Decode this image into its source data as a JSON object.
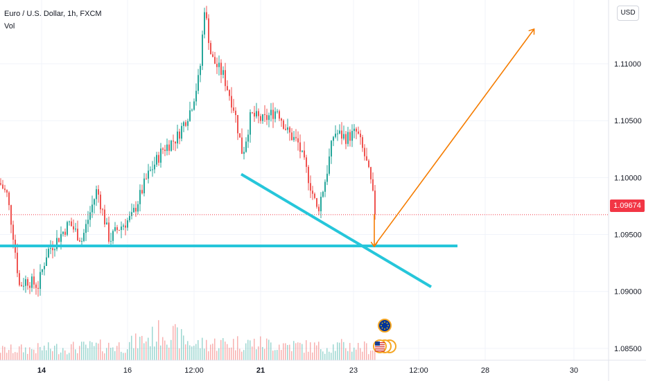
{
  "legend": {
    "symbol": "Euro / U.S. Dollar, 1h, FXCM",
    "volume_label": "Vol"
  },
  "currency_button": "USD",
  "last_price_label": "1.09674",
  "chart_data": {
    "type": "candlestick",
    "title": "Euro / U.S. Dollar, 1h, FXCM",
    "y_ticks": [
      "1.11000",
      "1.10500",
      "1.10000",
      "1.09500",
      "1.09000",
      "1.08500"
    ],
    "y_tick_values": [
      1.11,
      1.105,
      1.1,
      1.095,
      1.09,
      1.085
    ],
    "x_ticks": [
      "14",
      "16",
      "12:00",
      "21",
      "23",
      "12:00",
      "28",
      "30"
    ],
    "ylim": [
      1.0842,
      1.1156
    ],
    "last_price": 1.09674,
    "approx_path": [
      {
        "t": 0,
        "price": 1.0995
      },
      {
        "t": 10,
        "price": 1.0985
      },
      {
        "t": 18,
        "price": 1.0955
      },
      {
        "t": 28,
        "price": 1.0905
      },
      {
        "t": 38,
        "price": 1.091
      },
      {
        "t": 55,
        "price": 1.0905
      },
      {
        "t": 68,
        "price": 1.0935
      },
      {
        "t": 82,
        "price": 1.0945
      },
      {
        "t": 100,
        "price": 1.096
      },
      {
        "t": 118,
        "price": 1.0945
      },
      {
        "t": 140,
        "price": 1.099
      },
      {
        "t": 158,
        "price": 1.0945
      },
      {
        "t": 170,
        "price": 1.0955
      },
      {
        "t": 190,
        "price": 1.0965
      },
      {
        "t": 212,
        "price": 1.1
      },
      {
        "t": 235,
        "price": 1.1025
      },
      {
        "t": 255,
        "price": 1.1035
      },
      {
        "t": 275,
        "price": 1.106
      },
      {
        "t": 288,
        "price": 1.109
      },
      {
        "t": 295,
        "price": 1.115
      },
      {
        "t": 305,
        "price": 1.1105
      },
      {
        "t": 322,
        "price": 1.109
      },
      {
        "t": 338,
        "price": 1.106
      },
      {
        "t": 350,
        "price": 1.102
      },
      {
        "t": 362,
        "price": 1.1055
      },
      {
        "t": 380,
        "price": 1.105
      },
      {
        "t": 400,
        "price": 1.106
      },
      {
        "t": 415,
        "price": 1.104
      },
      {
        "t": 430,
        "price": 1.103
      },
      {
        "t": 445,
        "price": 1.1
      },
      {
        "t": 458,
        "price": 1.097
      },
      {
        "t": 470,
        "price": 1.1
      },
      {
        "t": 482,
        "price": 1.104
      },
      {
        "t": 500,
        "price": 1.1035
      },
      {
        "t": 515,
        "price": 1.104
      },
      {
        "t": 528,
        "price": 1.1015
      },
      {
        "t": 535,
        "price": 1.0995
      },
      {
        "t": 542,
        "price": 1.09674
      }
    ],
    "volume_profile": [
      {
        "t": 0,
        "v": 0.35
      },
      {
        "t": 60,
        "v": 0.4
      },
      {
        "t": 120,
        "v": 0.45
      },
      {
        "t": 180,
        "v": 0.5
      },
      {
        "t": 220,
        "v": 0.8
      },
      {
        "t": 235,
        "v": 1.0
      },
      {
        "t": 280,
        "v": 0.55
      },
      {
        "t": 340,
        "v": 0.6
      },
      {
        "t": 400,
        "v": 0.55
      },
      {
        "t": 460,
        "v": 0.45
      },
      {
        "t": 500,
        "v": 0.5
      },
      {
        "t": 545,
        "v": 0.4
      }
    ],
    "horizontal_line": {
      "price": 1.094,
      "color": "#26c6da"
    },
    "trendline": {
      "from": {
        "t": 348,
        "price": 1.1003
      },
      "to": {
        "t": 622,
        "price": 1.0904
      },
      "color": "#26c6da"
    },
    "projection_arrows": [
      {
        "from": {
          "t": 540,
          "price": 1.0968
        },
        "to": {
          "t": 540,
          "price": 1.094
        },
        "color": "#f57c00"
      },
      {
        "from": {
          "t": 540,
          "price": 1.094
        },
        "to": {
          "t": 770,
          "price": 1.113
        },
        "color": "#f57c00"
      }
    ],
    "colors": {
      "up": "#26a69a",
      "down": "#ef5350",
      "grid": "#f0f3fa",
      "last_price": "#f23645"
    },
    "event_icons": [
      "eu-flag-icon",
      "us-flag-icon"
    ]
  }
}
